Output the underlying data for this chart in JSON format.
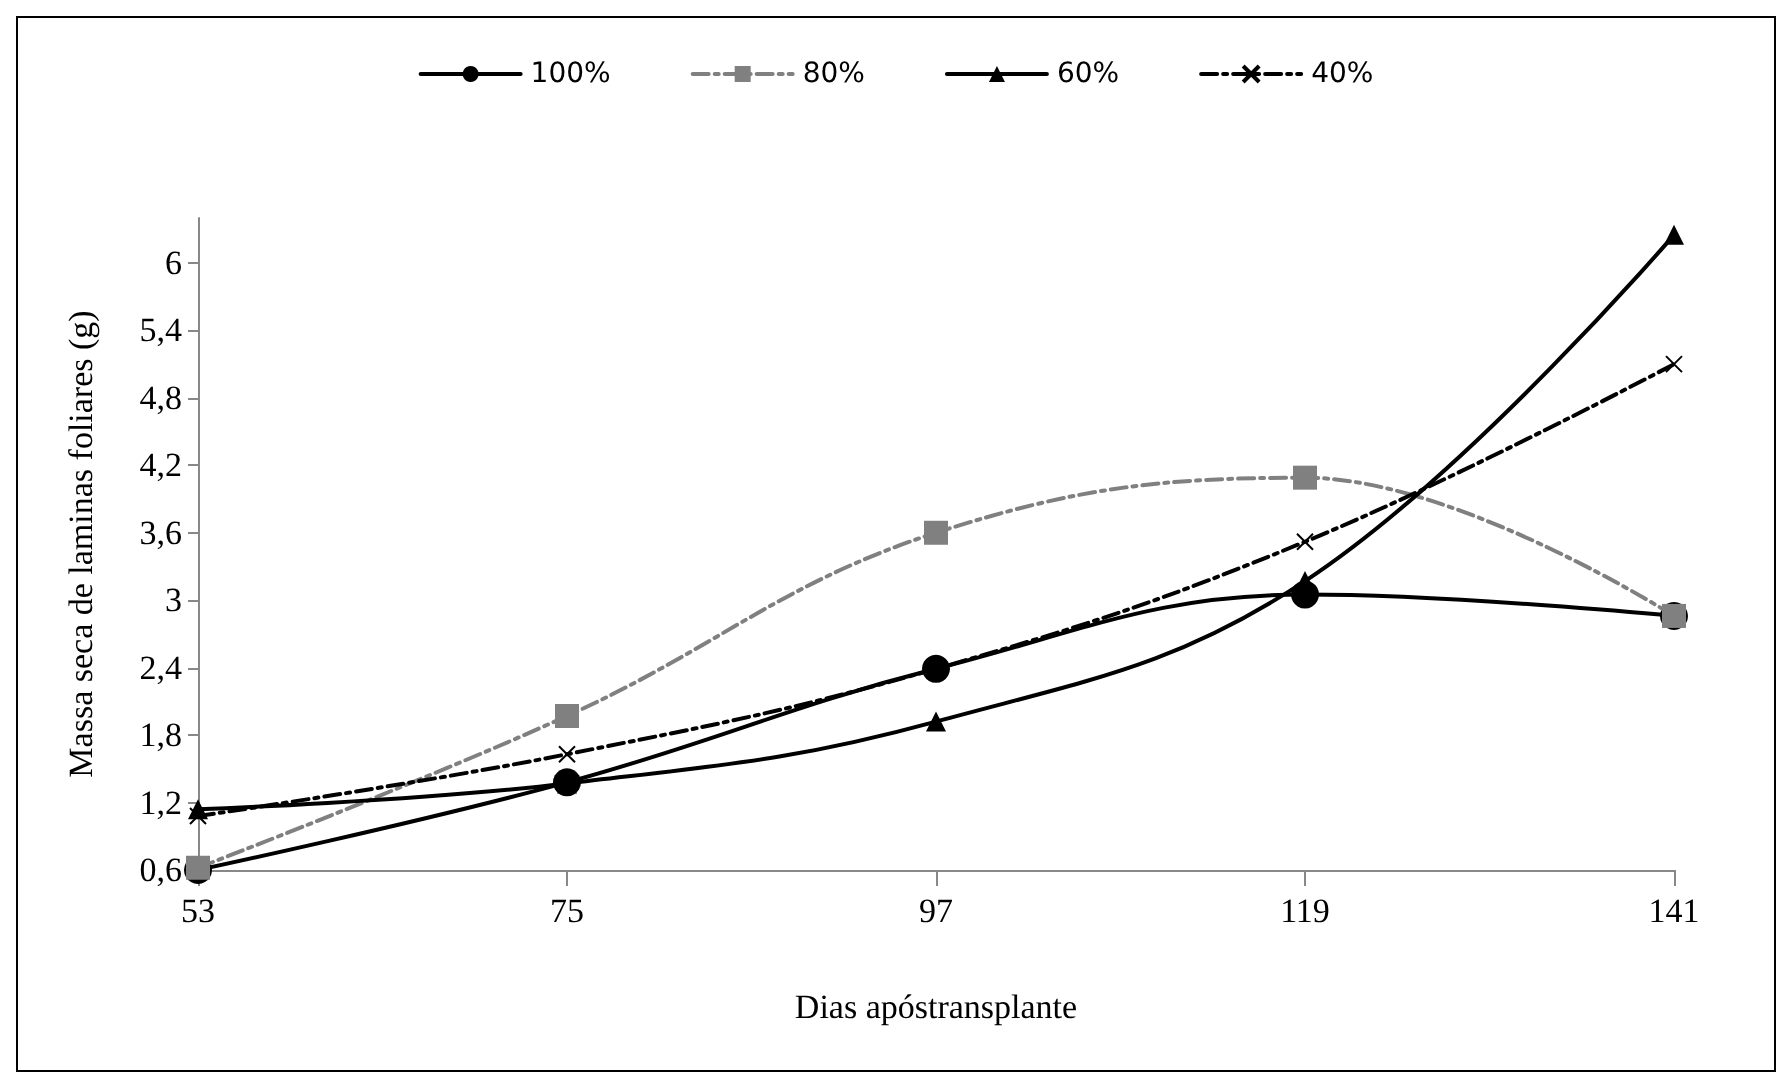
{
  "chart_data": {
    "type": "line",
    "xlabel": "Dias apóstransplante",
    "ylabel": "Massa seca de laminas foliares (g)",
    "categories": [
      "53",
      "75",
      "97",
      "119",
      "141"
    ],
    "ylim": [
      0.6,
      6.4
    ],
    "yticks": [
      {
        "value": 0.6,
        "label": "0,6"
      },
      {
        "value": 1.2,
        "label": "1,2"
      },
      {
        "value": 1.8,
        "label": "1,8"
      },
      {
        "value": 2.4,
        "label": "2,4"
      },
      {
        "value": 3,
        "label": "3"
      },
      {
        "value": 3.6,
        "label": "3,6"
      },
      {
        "value": 4.2,
        "label": "4,2"
      },
      {
        "value": 4.8,
        "label": "4,8"
      },
      {
        "value": 5.4,
        "label": "5,4"
      },
      {
        "value": 6,
        "label": "6"
      }
    ],
    "grid": false,
    "legend": "top",
    "series": [
      {
        "name": "100%",
        "color": "#000000",
        "marker": "circle",
        "line_style": "solid",
        "values": [
          0.6,
          1.38,
          2.39,
          3.05,
          2.86
        ]
      },
      {
        "name": "80%",
        "color": "#808080",
        "marker": "square",
        "line_style": "dashed",
        "values": [
          0.62,
          1.97,
          3.6,
          4.09,
          2.86
        ]
      },
      {
        "name": "60%",
        "color": "#000000",
        "marker": "triangle",
        "line_style": "solid",
        "values": [
          1.14,
          1.37,
          1.92,
          3.17,
          6.25
        ]
      },
      {
        "name": "40%",
        "color": "#000000",
        "marker": "cross",
        "line_style": "dashed",
        "values": [
          1.08,
          1.63,
          2.39,
          3.52,
          5.1
        ]
      }
    ]
  }
}
